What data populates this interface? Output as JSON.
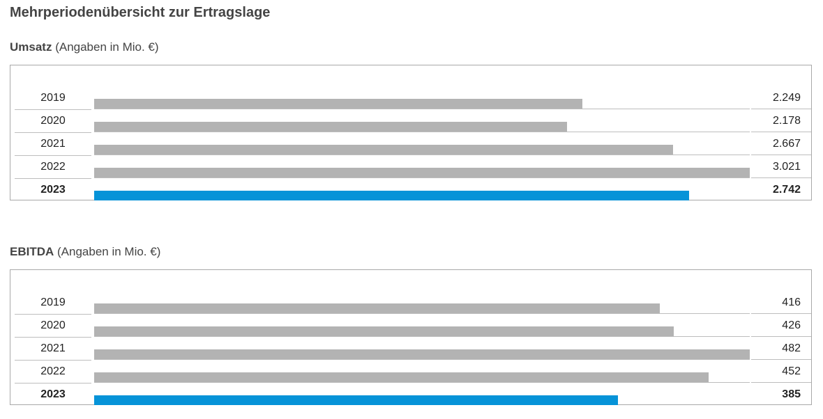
{
  "page_title": "Mehrperiodenübersicht zur Ertragslage",
  "colors": {
    "bar_default": "#b3b3b3",
    "bar_highlight": "#0693d8",
    "frame": "#a8a8a8"
  },
  "chart_data": [
    {
      "type": "bar",
      "orientation": "horizontal",
      "title_bold": "Umsatz",
      "title_rest": "(Angaben in Mio. €)",
      "categories": [
        "2019",
        "2020",
        "2021",
        "2022",
        "2023"
      ],
      "values": [
        2249,
        2178,
        2667,
        3021,
        2742
      ],
      "value_labels": [
        "2.249",
        "2.178",
        "2.667",
        "3.021",
        "2.742"
      ],
      "highlight_index": 4,
      "xlim": [
        0,
        3021
      ]
    },
    {
      "type": "bar",
      "orientation": "horizontal",
      "title_bold": "EBITDA",
      "title_rest": "(Angaben in Mio. €)",
      "categories": [
        "2019",
        "2020",
        "2021",
        "2022",
        "2023"
      ],
      "values": [
        416,
        426,
        482,
        452,
        385
      ],
      "value_labels": [
        "416",
        "426",
        "482",
        "452",
        "385"
      ],
      "highlight_index": 4,
      "xlim": [
        0,
        482
      ]
    }
  ]
}
